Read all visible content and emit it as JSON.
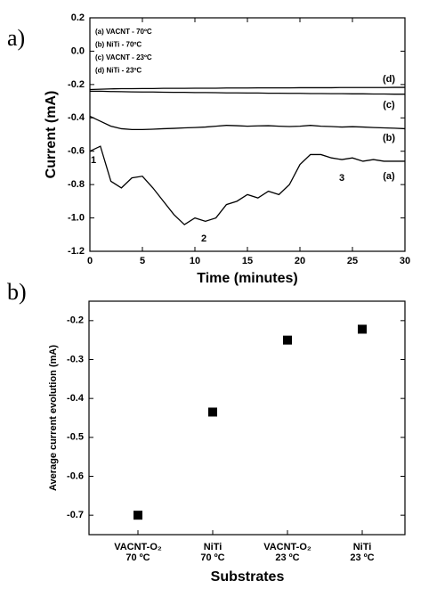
{
  "chart_data": [
    {
      "type": "line",
      "panel_label": "a)",
      "x_label": "Time (minutes)",
      "y_label": "Current (mA)",
      "xlim": [
        0,
        30
      ],
      "xticks": [
        0,
        5,
        10,
        15,
        20,
        25,
        30
      ],
      "ylim": [
        -1.2,
        0.2
      ],
      "yticks": [
        0.2,
        {
          "value": 0,
          "label": "0.0"
        },
        -0.2,
        -0.4,
        -0.6,
        -0.8,
        {
          "value": -1,
          "label": "-1.0"
        },
        -1.2
      ],
      "x": [
        0,
        1,
        2,
        3,
        4,
        5,
        6,
        7,
        8,
        9,
        10,
        11,
        12,
        13,
        14,
        15,
        16,
        17,
        18,
        19,
        20,
        21,
        22,
        23,
        24,
        25,
        26,
        27,
        28,
        29,
        30
      ],
      "series": [
        {
          "name": "(a) VACNT - 70ºC",
          "color": "#000000",
          "values": [
            -0.6,
            -0.57,
            -0.78,
            -0.82,
            -0.76,
            -0.75,
            -0.82,
            -0.9,
            -0.98,
            -1.04,
            -1.0,
            -1.02,
            -1.0,
            -0.92,
            -0.9,
            -0.86,
            -0.88,
            -0.84,
            -0.86,
            -0.8,
            -0.68,
            -0.62,
            -0.62,
            -0.64,
            -0.65,
            -0.64,
            -0.66,
            -0.65,
            -0.66,
            -0.66,
            -0.66
          ]
        },
        {
          "name": "(b) NiTi - 70ºC",
          "color": "#000000",
          "values": [
            -0.39,
            -0.42,
            -0.45,
            -0.465,
            -0.47,
            -0.47,
            -0.468,
            -0.465,
            -0.463,
            -0.46,
            -0.458,
            -0.455,
            -0.45,
            -0.445,
            -0.447,
            -0.45,
            -0.448,
            -0.447,
            -0.45,
            -0.452,
            -0.45,
            -0.445,
            -0.45,
            -0.452,
            -0.455,
            -0.453,
            -0.455,
            -0.458,
            -0.46,
            -0.462,
            -0.465
          ]
        },
        {
          "name": "(c) VACNT - 23ºC",
          "color": "#000000",
          "values": [
            -0.24,
            -0.24,
            -0.242,
            -0.243,
            -0.244,
            -0.245,
            -0.245,
            -0.246,
            -0.247,
            -0.247,
            -0.248,
            -0.248,
            -0.249,
            -0.25,
            -0.25,
            -0.251,
            -0.251,
            -0.252,
            -0.252,
            -0.253,
            -0.253,
            -0.254,
            -0.254,
            -0.255,
            -0.255,
            -0.256,
            -0.256,
            -0.257,
            -0.257,
            -0.258,
            -0.258
          ]
        },
        {
          "name": "(d) NiTi  - 23ºC",
          "color": "#000000",
          "values": [
            -0.23,
            -0.228,
            -0.226,
            -0.225,
            -0.225,
            -0.224,
            -0.224,
            -0.223,
            -0.223,
            -0.223,
            -0.222,
            -0.222,
            -0.222,
            -0.221,
            -0.221,
            -0.221,
            -0.22,
            -0.22,
            -0.22,
            -0.22,
            -0.219,
            -0.219,
            -0.219,
            -0.219,
            -0.218,
            -0.218,
            -0.218,
            -0.218,
            -0.218,
            -0.217,
            -0.217
          ]
        }
      ],
      "annotations": [
        "(d)",
        "(c)",
        "(b)",
        "(a)",
        "1",
        "2",
        "3"
      ]
    },
    {
      "type": "scatter",
      "panel_label": "b)",
      "x_label": "Substrates",
      "y_label": "Average current evolution (mA)",
      "categories": [
        [
          "VACNT-O₂",
          "70 ºC"
        ],
        [
          "NiTi",
          "70 ºC"
        ],
        [
          "VACNT-O₂",
          "23 ºC"
        ],
        [
          "NiTi",
          "23 ºC"
        ]
      ],
      "values": [
        -0.7,
        -0.435,
        -0.25,
        -0.222
      ],
      "color": "#000000",
      "ylim": [
        -0.75,
        -0.15
      ],
      "yticks": [
        -0.2,
        -0.3,
        -0.4,
        -0.5,
        -0.6,
        -0.7
      ]
    }
  ]
}
